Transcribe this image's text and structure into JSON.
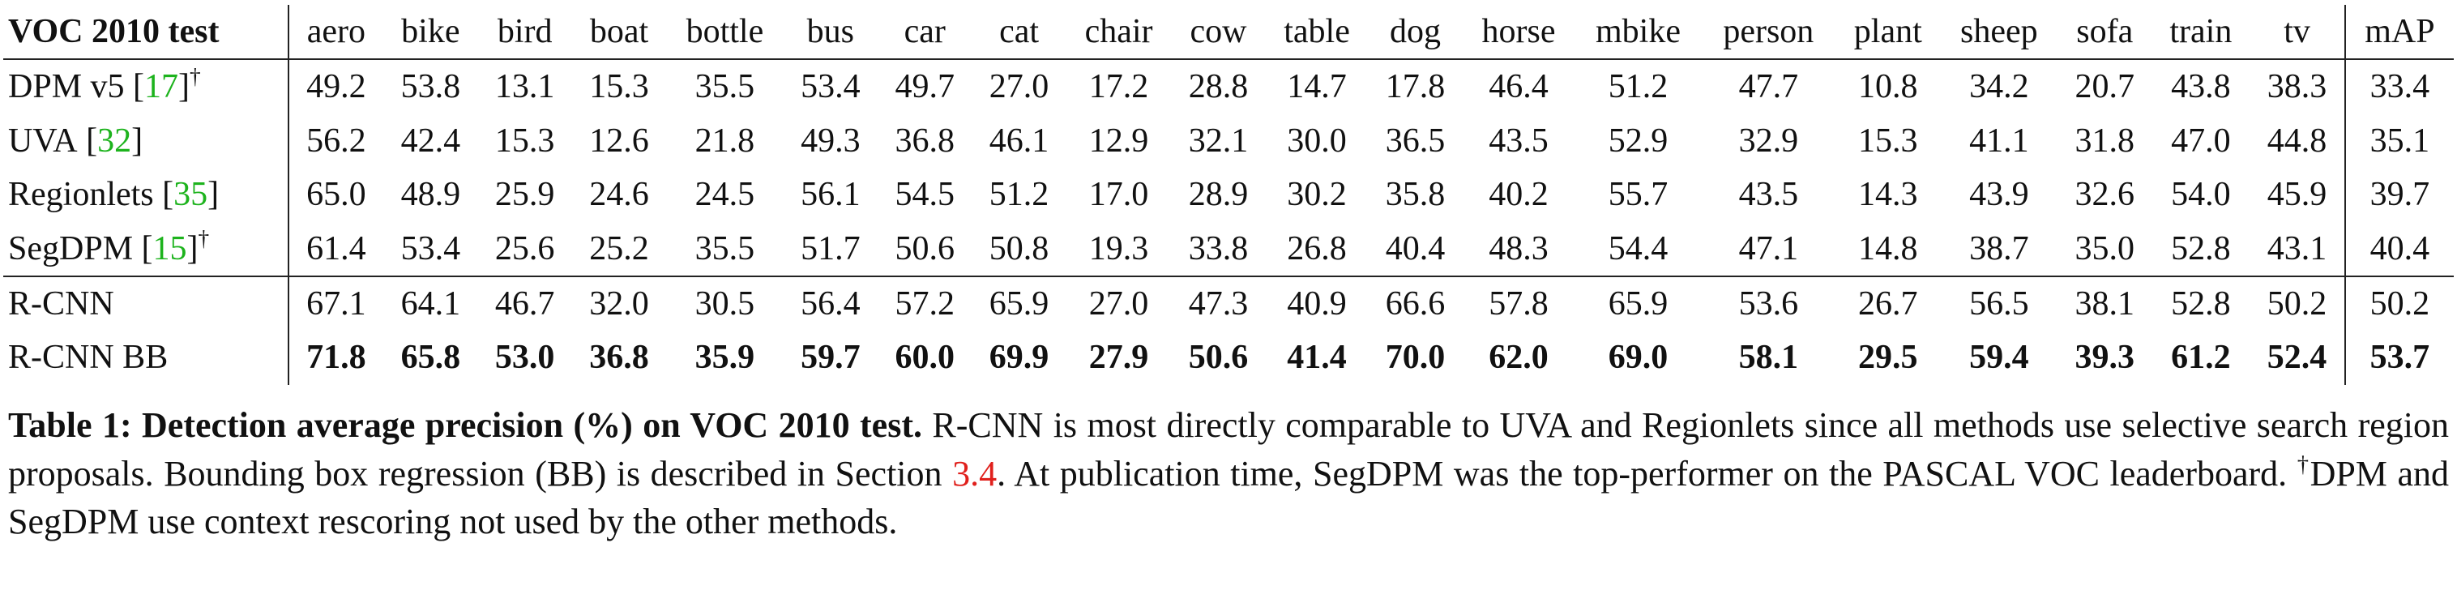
{
  "table": {
    "corner": "VOC 2010 test",
    "columns": [
      "aero",
      "bike",
      "bird",
      "boat",
      "bottle",
      "bus",
      "car",
      "cat",
      "chair",
      "cow",
      "table",
      "dog",
      "horse",
      "mbike",
      "person",
      "plant",
      "sheep",
      "sofa",
      "train",
      "tv",
      "mAP"
    ],
    "rows": [
      {
        "name": "DPM v5",
        "ref": [
          "[",
          "17",
          "]"
        ],
        "dagger": "†",
        "values": [
          "49.2",
          "53.8",
          "13.1",
          "15.3",
          "35.5",
          "53.4",
          "49.7",
          "27.0",
          "17.2",
          "28.8",
          "14.7",
          "17.8",
          "46.4",
          "51.2",
          "47.7",
          "10.8",
          "34.2",
          "20.7",
          "43.8",
          "38.3",
          "33.4"
        ]
      },
      {
        "name": "UVA",
        "ref": [
          "[",
          "32",
          "]"
        ],
        "values": [
          "56.2",
          "42.4",
          "15.3",
          "12.6",
          "21.8",
          "49.3",
          "36.8",
          "46.1",
          "12.9",
          "32.1",
          "30.0",
          "36.5",
          "43.5",
          "52.9",
          "32.9",
          "15.3",
          "41.1",
          "31.8",
          "47.0",
          "44.8",
          "35.1"
        ]
      },
      {
        "name": "Regionlets",
        "ref": [
          "[",
          "35",
          "]"
        ],
        "values": [
          "65.0",
          "48.9",
          "25.9",
          "24.6",
          "24.5",
          "56.1",
          "54.5",
          "51.2",
          "17.0",
          "28.9",
          "30.2",
          "35.8",
          "40.2",
          "55.7",
          "43.5",
          "14.3",
          "43.9",
          "32.6",
          "54.0",
          "45.9",
          "39.7"
        ]
      },
      {
        "name": "SegDPM",
        "ref": [
          "[",
          "15",
          "]"
        ],
        "dagger": "†",
        "values": [
          "61.4",
          "53.4",
          "25.6",
          "25.2",
          "35.5",
          "51.7",
          "50.6",
          "50.8",
          "19.3",
          "33.8",
          "26.8",
          "40.4",
          "48.3",
          "54.4",
          "47.1",
          "14.8",
          "38.7",
          "35.0",
          "52.8",
          "43.1",
          "40.4"
        ],
        "separator": true
      },
      {
        "name": "R-CNN",
        "values": [
          "67.1",
          "64.1",
          "46.7",
          "32.0",
          "30.5",
          "56.4",
          "57.2",
          "65.9",
          "27.0",
          "47.3",
          "40.9",
          "66.6",
          "57.8",
          "65.9",
          "53.6",
          "26.7",
          "56.5",
          "38.1",
          "52.8",
          "50.2",
          "50.2"
        ]
      },
      {
        "name": "R-CNN BB",
        "bold": true,
        "values": [
          "71.8",
          "65.8",
          "53.0",
          "36.8",
          "35.9",
          "59.7",
          "60.0",
          "69.9",
          "27.9",
          "50.6",
          "41.4",
          "70.0",
          "62.0",
          "69.0",
          "58.1",
          "29.5",
          "59.4",
          "39.3",
          "61.2",
          "52.4",
          "53.7"
        ]
      }
    ]
  },
  "caption": {
    "label": "Table 1: Detection average precision (%) on VOC 2010 test.",
    "text1": " R-CNN is most directly comparable to UVA and Regionlets since all methods use selective search region proposals. Bounding box regression (BB) is described in Section ",
    "section_ref": "3.4",
    "text2": ". At publication time, SegDPM was the top-performer on the PASCAL VOC leaderboard. ",
    "dagger": "†",
    "text3": "DPM and SegDPM use context rescoring not used by the other methods."
  }
}
